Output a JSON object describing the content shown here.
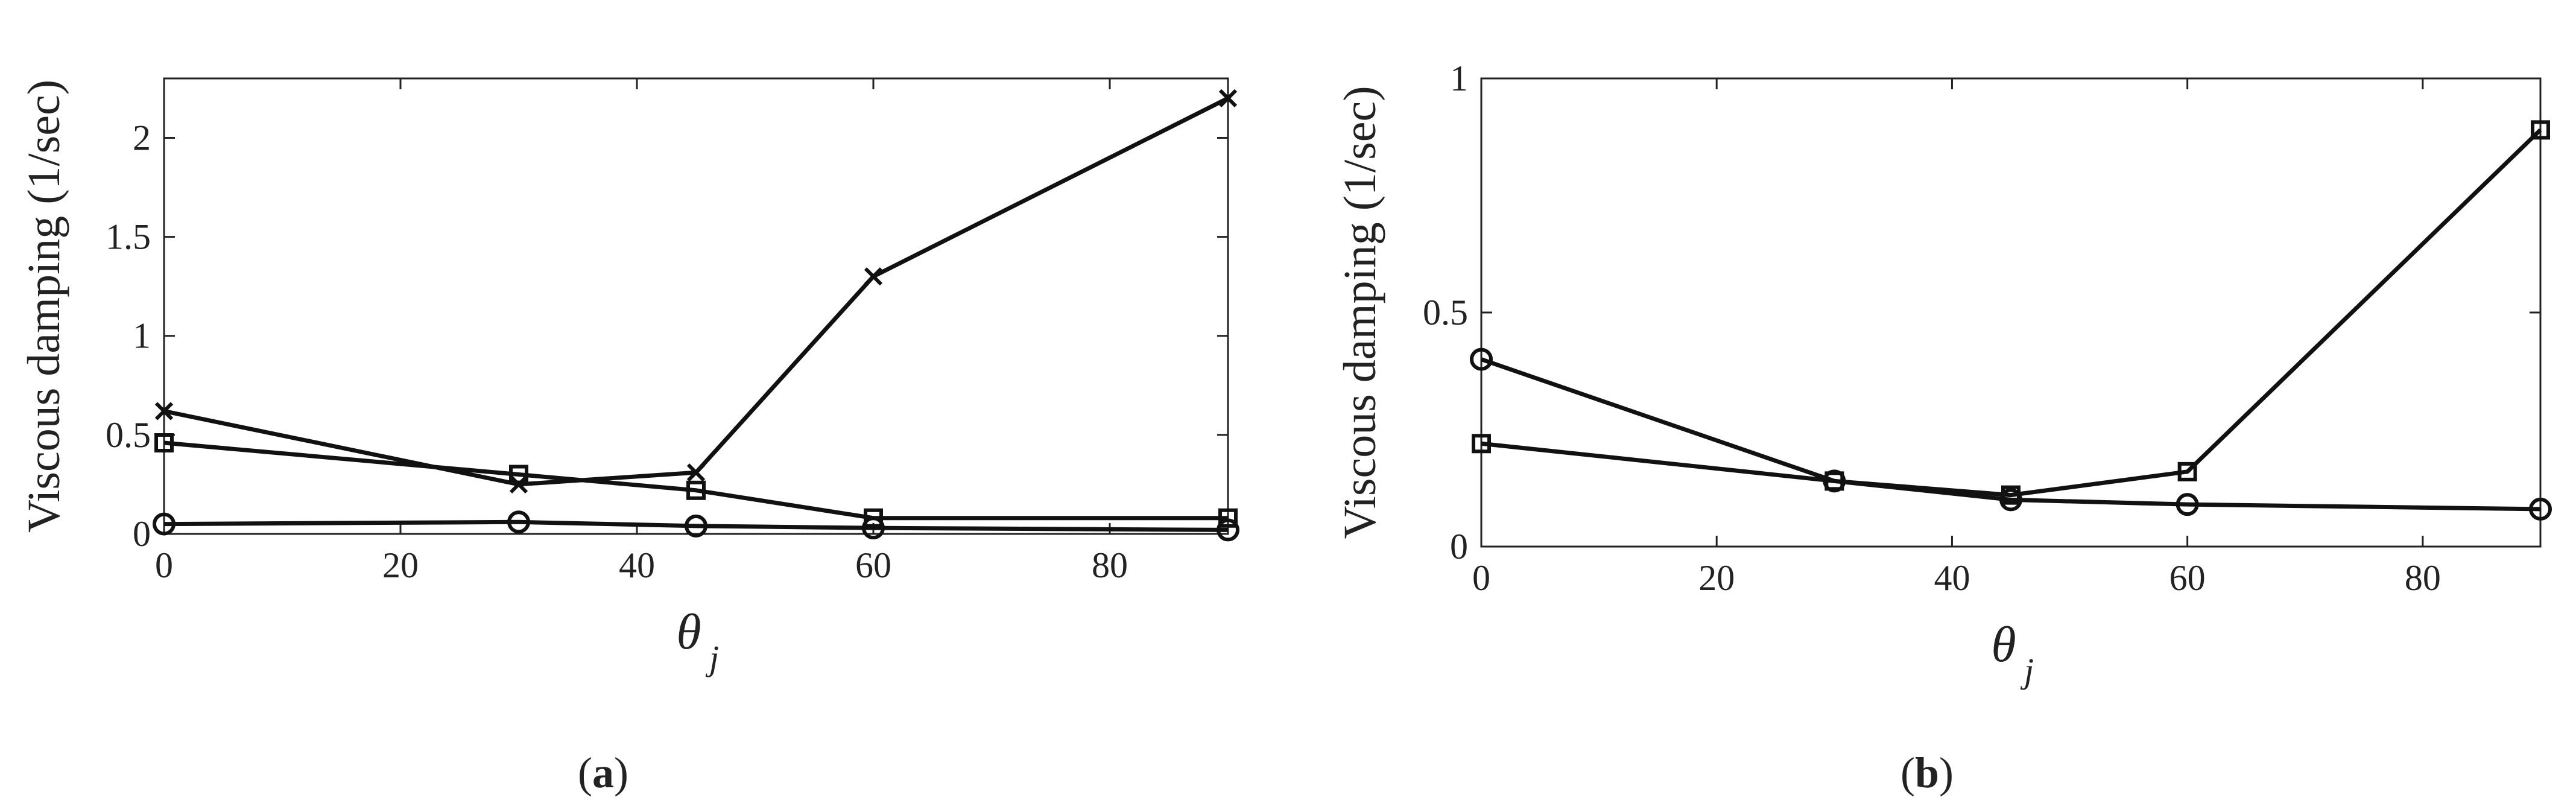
{
  "chart_data": [
    {
      "type": "line",
      "panel_label": "a",
      "caption_open": "(",
      "caption_close": ")",
      "ylabel": "Viscous damping (1/sec)",
      "xlabel": "θ",
      "xlabel_subscript": "j",
      "xlim": [
        0,
        90
      ],
      "ylim": [
        0,
        2.3
      ],
      "xticks": [
        0,
        20,
        40,
        60,
        80
      ],
      "yticks": [
        0,
        0.5,
        1,
        1.5,
        2
      ],
      "ytick_labels": [
        "0",
        "0.5",
        "1",
        "1.5",
        "2"
      ],
      "grid": false,
      "series": [
        {
          "marker": "x",
          "x": [
            0,
            30,
            45,
            60,
            90
          ],
          "y": [
            0.62,
            0.25,
            0.31,
            1.3,
            2.2
          ]
        },
        {
          "marker": "square",
          "x": [
            0,
            30,
            45,
            60,
            90
          ],
          "y": [
            0.46,
            0.3,
            0.22,
            0.08,
            0.08
          ]
        },
        {
          "marker": "circle",
          "x": [
            0,
            30,
            45,
            60,
            90
          ],
          "y": [
            0.05,
            0.06,
            0.04,
            0.03,
            0.02
          ]
        }
      ]
    },
    {
      "type": "line",
      "panel_label": "b",
      "caption_open": "(",
      "caption_close": ")",
      "ylabel": "Viscous damping (1/sec)",
      "xlabel": "θ",
      "xlabel_subscript": "j",
      "xlim": [
        0,
        90
      ],
      "ylim": [
        0,
        1
      ],
      "xticks": [
        0,
        20,
        40,
        60,
        80
      ],
      "yticks": [
        0,
        0.5,
        1
      ],
      "ytick_labels": [
        "0",
        "0.5",
        "1"
      ],
      "grid": false,
      "series": [
        {
          "marker": "square",
          "x": [
            0,
            30,
            45,
            60,
            90
          ],
          "y": [
            0.22,
            0.14,
            0.11,
            0.16,
            0.89
          ]
        },
        {
          "marker": "circle",
          "x": [
            0,
            30,
            45,
            60,
            90
          ],
          "y": [
            0.4,
            0.14,
            0.1,
            0.09,
            0.08
          ]
        }
      ]
    }
  ]
}
